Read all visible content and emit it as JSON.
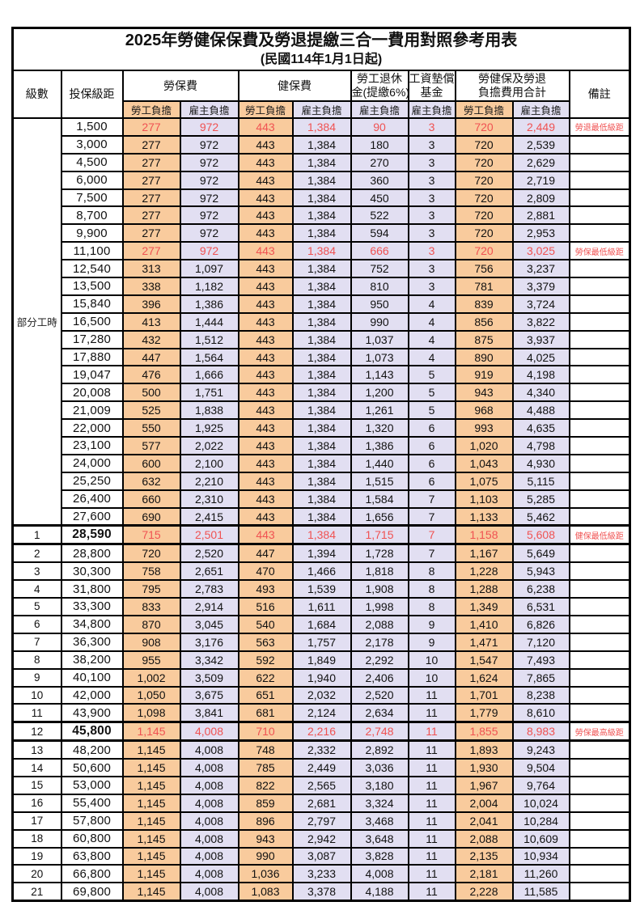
{
  "title": "2025年勞健保保費及勞退提繳三合一費用對照參考用表",
  "subtitle": "(民國114年1月1日起)",
  "colors": {
    "employee_bg": "#F9CB9D",
    "employer_bg": "#E2DFF2",
    "highlight_red": "#F05252"
  },
  "header": {
    "level": "級數",
    "bracket": "投保級距",
    "labor_fee": "勞保費",
    "health_fee": "健保費",
    "pension_line1": "勞工退休",
    "pension_line2": "金(提繳6%)",
    "wage_fund_line1": "工資墊償",
    "wage_fund_line2": "基金",
    "total_line1": "勞健保及勞退",
    "total_line2": "負擔費用合計",
    "remark": "備註",
    "employee_label": "勞工負擔",
    "employer_label": "雇主負擔"
  },
  "part_time_label": "部分工時",
  "part_time_rowspan": 23,
  "rows": [
    {
      "level": "",
      "bracket": "1,500",
      "values": [
        "277",
        "972",
        "443",
        "1,384",
        "90",
        "3",
        "720",
        "2,449"
      ],
      "remark": "勞退最低級距",
      "red": true
    },
    {
      "level": "",
      "bracket": "3,000",
      "values": [
        "277",
        "972",
        "443",
        "1,384",
        "180",
        "3",
        "720",
        "2,539"
      ],
      "remark": ""
    },
    {
      "level": "",
      "bracket": "4,500",
      "values": [
        "277",
        "972",
        "443",
        "1,384",
        "270",
        "3",
        "720",
        "2,629"
      ],
      "remark": ""
    },
    {
      "level": "",
      "bracket": "6,000",
      "values": [
        "277",
        "972",
        "443",
        "1,384",
        "360",
        "3",
        "720",
        "2,719"
      ],
      "remark": ""
    },
    {
      "level": "",
      "bracket": "7,500",
      "values": [
        "277",
        "972",
        "443",
        "1,384",
        "450",
        "3",
        "720",
        "2,809"
      ],
      "remark": ""
    },
    {
      "level": "",
      "bracket": "8,700",
      "values": [
        "277",
        "972",
        "443",
        "1,384",
        "522",
        "3",
        "720",
        "2,881"
      ],
      "remark": ""
    },
    {
      "level": "",
      "bracket": "9,900",
      "values": [
        "277",
        "972",
        "443",
        "1,384",
        "594",
        "3",
        "720",
        "2,953"
      ],
      "remark": ""
    },
    {
      "level": "",
      "bracket": "11,100",
      "values": [
        "277",
        "972",
        "443",
        "1,384",
        "666",
        "3",
        "720",
        "3,025"
      ],
      "remark": "勞保最低級距",
      "red": true
    },
    {
      "level": "",
      "bracket": "12,540",
      "values": [
        "313",
        "1,097",
        "443",
        "1,384",
        "752",
        "3",
        "756",
        "3,237"
      ],
      "remark": ""
    },
    {
      "level": "",
      "bracket": "13,500",
      "values": [
        "338",
        "1,182",
        "443",
        "1,384",
        "810",
        "3",
        "781",
        "3,379"
      ],
      "remark": ""
    },
    {
      "level": "",
      "bracket": "15,840",
      "values": [
        "396",
        "1,386",
        "443",
        "1,384",
        "950",
        "4",
        "839",
        "3,724"
      ],
      "remark": ""
    },
    {
      "level": "",
      "bracket": "16,500",
      "values": [
        "413",
        "1,444",
        "443",
        "1,384",
        "990",
        "4",
        "856",
        "3,822"
      ],
      "remark": ""
    },
    {
      "level": "",
      "bracket": "17,280",
      "values": [
        "432",
        "1,512",
        "443",
        "1,384",
        "1,037",
        "4",
        "875",
        "3,937"
      ],
      "remark": ""
    },
    {
      "level": "",
      "bracket": "17,880",
      "values": [
        "447",
        "1,564",
        "443",
        "1,384",
        "1,073",
        "4",
        "890",
        "4,025"
      ],
      "remark": ""
    },
    {
      "level": "",
      "bracket": "19,047",
      "values": [
        "476",
        "1,666",
        "443",
        "1,384",
        "1,143",
        "5",
        "919",
        "4,198"
      ],
      "remark": ""
    },
    {
      "level": "",
      "bracket": "20,008",
      "values": [
        "500",
        "1,751",
        "443",
        "1,384",
        "1,200",
        "5",
        "943",
        "4,340"
      ],
      "remark": ""
    },
    {
      "level": "",
      "bracket": "21,009",
      "values": [
        "525",
        "1,838",
        "443",
        "1,384",
        "1,261",
        "5",
        "968",
        "4,488"
      ],
      "remark": ""
    },
    {
      "level": "",
      "bracket": "22,000",
      "values": [
        "550",
        "1,925",
        "443",
        "1,384",
        "1,320",
        "6",
        "993",
        "4,635"
      ],
      "remark": ""
    },
    {
      "level": "",
      "bracket": "23,100",
      "values": [
        "577",
        "2,022",
        "443",
        "1,384",
        "1,386",
        "6",
        "1,020",
        "4,798"
      ],
      "remark": ""
    },
    {
      "level": "",
      "bracket": "24,000",
      "values": [
        "600",
        "2,100",
        "443",
        "1,384",
        "1,440",
        "6",
        "1,043",
        "4,930"
      ],
      "remark": ""
    },
    {
      "level": "",
      "bracket": "25,250",
      "values": [
        "632",
        "2,210",
        "443",
        "1,384",
        "1,515",
        "6",
        "1,075",
        "5,115"
      ],
      "remark": ""
    },
    {
      "level": "",
      "bracket": "26,400",
      "values": [
        "660",
        "2,310",
        "443",
        "1,384",
        "1,584",
        "7",
        "1,103",
        "5,285"
      ],
      "remark": ""
    },
    {
      "level": "",
      "bracket": "27,600",
      "values": [
        "690",
        "2,415",
        "443",
        "1,384",
        "1,656",
        "7",
        "1,133",
        "5,462"
      ],
      "remark": ""
    },
    {
      "level": "1",
      "bracket": "28,590",
      "values": [
        "715",
        "2,501",
        "443",
        "1,384",
        "1,715",
        "7",
        "1,158",
        "5,608"
      ],
      "remark": "健保最低級距",
      "red": true,
      "bold": true
    },
    {
      "level": "2",
      "bracket": "28,800",
      "values": [
        "720",
        "2,520",
        "447",
        "1,394",
        "1,728",
        "7",
        "1,167",
        "5,649"
      ],
      "remark": ""
    },
    {
      "level": "3",
      "bracket": "30,300",
      "values": [
        "758",
        "2,651",
        "470",
        "1,466",
        "1,818",
        "8",
        "1,228",
        "5,943"
      ],
      "remark": ""
    },
    {
      "level": "4",
      "bracket": "31,800",
      "values": [
        "795",
        "2,783",
        "493",
        "1,539",
        "1,908",
        "8",
        "1,288",
        "6,238"
      ],
      "remark": ""
    },
    {
      "level": "5",
      "bracket": "33,300",
      "values": [
        "833",
        "2,914",
        "516",
        "1,611",
        "1,998",
        "8",
        "1,349",
        "6,531"
      ],
      "remark": ""
    },
    {
      "level": "6",
      "bracket": "34,800",
      "values": [
        "870",
        "3,045",
        "540",
        "1,684",
        "2,088",
        "9",
        "1,410",
        "6,826"
      ],
      "remark": ""
    },
    {
      "level": "7",
      "bracket": "36,300",
      "values": [
        "908",
        "3,176",
        "563",
        "1,757",
        "2,178",
        "9",
        "1,471",
        "7,120"
      ],
      "remark": ""
    },
    {
      "level": "8",
      "bracket": "38,200",
      "values": [
        "955",
        "3,342",
        "592",
        "1,849",
        "2,292",
        "10",
        "1,547",
        "7,493"
      ],
      "remark": ""
    },
    {
      "level": "9",
      "bracket": "40,100",
      "values": [
        "1,002",
        "3,509",
        "622",
        "1,940",
        "2,406",
        "10",
        "1,624",
        "7,865"
      ],
      "remark": ""
    },
    {
      "level": "10",
      "bracket": "42,000",
      "values": [
        "1,050",
        "3,675",
        "651",
        "2,032",
        "2,520",
        "11",
        "1,701",
        "8,238"
      ],
      "remark": ""
    },
    {
      "level": "11",
      "bracket": "43,900",
      "values": [
        "1,098",
        "3,841",
        "681",
        "2,124",
        "2,634",
        "11",
        "1,779",
        "8,610"
      ],
      "remark": ""
    },
    {
      "level": "12",
      "bracket": "45,800",
      "values": [
        "1,145",
        "4,008",
        "710",
        "2,216",
        "2,748",
        "11",
        "1,855",
        "8,983"
      ],
      "remark": "勞保最高級距",
      "red": true,
      "bold": true
    },
    {
      "level": "13",
      "bracket": "48,200",
      "values": [
        "1,145",
        "4,008",
        "748",
        "2,332",
        "2,892",
        "11",
        "1,893",
        "9,243"
      ],
      "remark": ""
    },
    {
      "level": "14",
      "bracket": "50,600",
      "values": [
        "1,145",
        "4,008",
        "785",
        "2,449",
        "3,036",
        "11",
        "1,930",
        "9,504"
      ],
      "remark": ""
    },
    {
      "level": "15",
      "bracket": "53,000",
      "values": [
        "1,145",
        "4,008",
        "822",
        "2,565",
        "3,180",
        "11",
        "1,967",
        "9,764"
      ],
      "remark": ""
    },
    {
      "level": "16",
      "bracket": "55,400",
      "values": [
        "1,145",
        "4,008",
        "859",
        "2,681",
        "3,324",
        "11",
        "2,004",
        "10,024"
      ],
      "remark": ""
    },
    {
      "level": "17",
      "bracket": "57,800",
      "values": [
        "1,145",
        "4,008",
        "896",
        "2,797",
        "3,468",
        "11",
        "2,041",
        "10,284"
      ],
      "remark": ""
    },
    {
      "level": "18",
      "bracket": "60,800",
      "values": [
        "1,145",
        "4,008",
        "943",
        "2,942",
        "3,648",
        "11",
        "2,088",
        "10,609"
      ],
      "remark": ""
    },
    {
      "level": "19",
      "bracket": "63,800",
      "values": [
        "1,145",
        "4,008",
        "990",
        "3,087",
        "3,828",
        "11",
        "2,135",
        "10,934"
      ],
      "remark": ""
    },
    {
      "level": "20",
      "bracket": "66,800",
      "values": [
        "1,145",
        "4,008",
        "1,036",
        "3,233",
        "4,008",
        "11",
        "2,181",
        "11,260"
      ],
      "remark": ""
    },
    {
      "level": "21",
      "bracket": "69,800",
      "values": [
        "1,145",
        "4,008",
        "1,083",
        "3,378",
        "4,188",
        "11",
        "2,228",
        "11,585"
      ],
      "remark": ""
    }
  ]
}
